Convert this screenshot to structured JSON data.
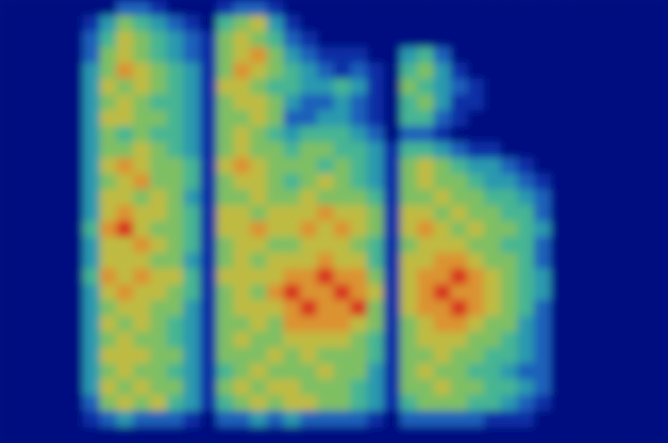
{
  "chart_data": {
    "type": "heatmap",
    "tick_labels": false,
    "cells": [
      [
        0,
        0,
        0,
        0,
        0,
        0,
        0,
        2,
        2,
        1,
        0,
        0,
        0,
        1,
        2,
        2,
        1,
        0,
        0,
        0,
        0,
        0,
        0,
        0,
        0,
        0,
        0,
        0,
        0,
        0,
        0,
        0,
        0,
        0,
        0,
        0,
        0,
        0,
        0,
        0
      ],
      [
        0,
        0,
        0,
        0,
        0,
        1,
        3,
        5,
        4,
        3,
        2,
        1,
        0,
        4,
        5,
        6,
        3,
        1,
        0,
        0,
        0,
        0,
        0,
        0,
        0,
        0,
        0,
        0,
        0,
        0,
        0,
        0,
        0,
        0,
        0,
        0,
        0,
        0,
        0,
        0
      ],
      [
        0,
        0,
        0,
        0,
        0,
        2,
        4,
        6,
        5,
        4,
        3,
        2,
        1,
        5,
        6,
        5,
        4,
        2,
        1,
        0,
        0,
        0,
        0,
        0,
        0,
        0,
        0,
        0,
        0,
        0,
        0,
        0,
        0,
        0,
        0,
        0,
        0,
        0,
        0,
        0
      ],
      [
        0,
        0,
        0,
        0,
        0,
        2,
        5,
        6,
        5,
        4,
        3,
        2,
        1,
        5,
        6,
        7,
        5,
        3,
        2,
        1,
        1,
        1,
        0,
        0,
        3,
        4,
        2,
        0,
        0,
        0,
        0,
        0,
        0,
        0,
        0,
        0,
        0,
        0,
        0,
        0
      ],
      [
        0,
        0,
        0,
        0,
        0,
        3,
        5,
        7,
        6,
        5,
        4,
        3,
        1,
        5,
        7,
        6,
        5,
        4,
        3,
        2,
        1,
        2,
        1,
        0,
        4,
        5,
        3,
        1,
        0,
        0,
        0,
        0,
        0,
        0,
        0,
        0,
        0,
        0,
        0,
        0
      ],
      [
        0,
        0,
        0,
        0,
        0,
        3,
        6,
        5,
        6,
        5,
        4,
        3,
        1,
        6,
        6,
        5,
        4,
        4,
        3,
        3,
        4,
        3,
        1,
        0,
        5,
        4,
        3,
        2,
        1,
        0,
        0,
        0,
        0,
        0,
        0,
        0,
        0,
        0,
        0,
        0
      ],
      [
        0,
        0,
        0,
        0,
        0,
        3,
        5,
        6,
        5,
        4,
        4,
        3,
        1,
        5,
        6,
        6,
        5,
        3,
        2,
        2,
        3,
        2,
        1,
        0,
        4,
        5,
        3,
        1,
        1,
        0,
        0,
        0,
        0,
        0,
        0,
        0,
        0,
        0,
        0,
        0
      ],
      [
        0,
        0,
        0,
        0,
        0,
        3,
        6,
        6,
        5,
        5,
        4,
        3,
        1,
        5,
        5,
        6,
        5,
        2,
        2,
        3,
        3,
        2,
        1,
        0,
        4,
        4,
        2,
        1,
        0,
        0,
        0,
        0,
        0,
        0,
        0,
        0,
        0,
        0,
        0,
        0
      ],
      [
        0,
        0,
        0,
        0,
        0,
        3,
        5,
        4,
        5,
        4,
        4,
        3,
        1,
        5,
        6,
        5,
        4,
        3,
        4,
        4,
        4,
        3,
        2,
        0,
        2,
        2,
        1,
        0,
        0,
        0,
        0,
        0,
        0,
        0,
        0,
        0,
        0,
        0,
        0,
        0
      ],
      [
        0,
        0,
        0,
        0,
        0,
        3,
        5,
        5,
        6,
        5,
        4,
        3,
        1,
        5,
        6,
        5,
        5,
        4,
        5,
        5,
        4,
        4,
        3,
        1,
        4,
        4,
        3,
        2,
        1,
        1,
        0,
        0,
        0,
        0,
        0,
        0,
        0,
        0,
        0,
        0
      ],
      [
        0,
        0,
        0,
        0,
        0,
        3,
        6,
        7,
        6,
        5,
        5,
        4,
        1,
        6,
        7,
        6,
        5,
        5,
        5,
        4,
        5,
        4,
        3,
        1,
        5,
        6,
        5,
        4,
        3,
        3,
        2,
        1,
        0,
        0,
        0,
        0,
        0,
        0,
        0,
        0
      ],
      [
        0,
        0,
        0,
        0,
        0,
        3,
        5,
        6,
        7,
        5,
        5,
        4,
        1,
        5,
        6,
        6,
        5,
        4,
        5,
        6,
        5,
        4,
        3,
        1,
        5,
        6,
        5,
        5,
        4,
        3,
        3,
        2,
        1,
        0,
        0,
        0,
        0,
        0,
        0,
        0
      ],
      [
        0,
        0,
        0,
        0,
        0,
        3,
        6,
        6,
        5,
        6,
        5,
        3,
        1,
        5,
        5,
        6,
        5,
        5,
        6,
        5,
        5,
        5,
        4,
        1,
        5,
        5,
        6,
        5,
        5,
        4,
        4,
        3,
        2,
        0,
        0,
        0,
        0,
        0,
        0,
        0
      ],
      [
        0,
        0,
        0,
        0,
        0,
        3,
        6,
        7,
        6,
        6,
        5,
        4,
        1,
        6,
        6,
        5,
        6,
        6,
        6,
        7,
        6,
        6,
        5,
        1,
        6,
        6,
        5,
        6,
        5,
        5,
        4,
        4,
        2,
        0,
        0,
        0,
        0,
        0,
        0,
        0
      ],
      [
        0,
        0,
        0,
        0,
        0,
        4,
        7,
        8,
        6,
        5,
        5,
        4,
        1,
        6,
        6,
        7,
        6,
        6,
        7,
        6,
        7,
        6,
        5,
        1,
        6,
        7,
        6,
        5,
        6,
        5,
        5,
        4,
        3,
        0,
        0,
        0,
        0,
        0,
        0,
        0
      ],
      [
        0,
        0,
        0,
        0,
        0,
        3,
        6,
        6,
        7,
        6,
        5,
        4,
        1,
        5,
        6,
        6,
        5,
        5,
        6,
        6,
        6,
        5,
        4,
        1,
        5,
        6,
        6,
        6,
        5,
        5,
        4,
        4,
        2,
        0,
        0,
        0,
        0,
        0,
        0,
        0
      ],
      [
        0,
        0,
        0,
        0,
        0,
        3,
        6,
        6,
        6,
        5,
        5,
        3,
        1,
        5,
        6,
        5,
        6,
        6,
        6,
        7,
        6,
        6,
        4,
        1,
        6,
        6,
        7,
        7,
        6,
        5,
        5,
        4,
        2,
        0,
        0,
        0,
        0,
        0,
        0,
        0
      ],
      [
        0,
        0,
        0,
        0,
        0,
        4,
        7,
        6,
        7,
        6,
        6,
        4,
        1,
        6,
        6,
        6,
        6,
        7,
        7,
        8,
        7,
        7,
        5,
        1,
        6,
        7,
        7,
        8,
        7,
        6,
        5,
        4,
        3,
        0,
        0,
        0,
        0,
        0,
        0,
        0
      ],
      [
        0,
        0,
        0,
        0,
        0,
        3,
        6,
        7,
        6,
        6,
        5,
        4,
        1,
        5,
        6,
        5,
        7,
        8,
        7,
        7,
        8,
        7,
        6,
        1,
        6,
        7,
        8,
        7,
        7,
        6,
        5,
        4,
        3,
        0,
        0,
        0,
        0,
        0,
        0,
        0
      ],
      [
        0,
        0,
        0,
        0,
        0,
        3,
        5,
        6,
        6,
        5,
        5,
        3,
        1,
        5,
        6,
        6,
        6,
        7,
        8,
        7,
        7,
        8,
        5,
        1,
        6,
        7,
        7,
        8,
        7,
        6,
        5,
        4,
        2,
        0,
        0,
        0,
        0,
        0,
        0,
        0
      ],
      [
        0,
        0,
        0,
        0,
        0,
        3,
        6,
        5,
        6,
        5,
        4,
        3,
        1,
        5,
        5,
        6,
        5,
        7,
        7,
        7,
        7,
        6,
        5,
        1,
        5,
        6,
        7,
        7,
        6,
        5,
        5,
        3,
        2,
        0,
        0,
        0,
        0,
        0,
        0,
        0
      ],
      [
        0,
        0,
        0,
        0,
        0,
        3,
        5,
        6,
        5,
        5,
        4,
        3,
        1,
        5,
        6,
        5,
        5,
        6,
        6,
        6,
        6,
        5,
        4,
        1,
        5,
        6,
        6,
        6,
        5,
        5,
        4,
        3,
        2,
        0,
        0,
        0,
        0,
        0,
        0,
        0
      ],
      [
        0,
        0,
        0,
        0,
        0,
        3,
        6,
        6,
        6,
        5,
        5,
        3,
        1,
        5,
        5,
        5,
        6,
        5,
        6,
        5,
        5,
        5,
        4,
        1,
        5,
        5,
        6,
        5,
        5,
        4,
        4,
        3,
        2,
        0,
        0,
        0,
        0,
        0,
        0,
        0
      ],
      [
        0,
        0,
        0,
        0,
        0,
        3,
        5,
        6,
        5,
        5,
        4,
        3,
        1,
        4,
        5,
        6,
        5,
        5,
        5,
        6,
        5,
        5,
        3,
        1,
        5,
        6,
        5,
        5,
        4,
        4,
        3,
        2,
        2,
        0,
        0,
        0,
        0,
        0,
        0,
        0
      ],
      [
        0,
        0,
        0,
        0,
        0,
        3,
        6,
        5,
        6,
        5,
        5,
        3,
        1,
        5,
        6,
        5,
        6,
        6,
        5,
        5,
        5,
        4,
        3,
        1,
        5,
        5,
        6,
        5,
        5,
        4,
        4,
        3,
        2,
        0,
        0,
        0,
        0,
        0,
        0,
        0
      ],
      [
        0,
        0,
        0,
        0,
        0,
        2,
        5,
        6,
        5,
        6,
        4,
        3,
        1,
        4,
        5,
        6,
        5,
        6,
        6,
        5,
        5,
        4,
        3,
        1,
        4,
        5,
        5,
        5,
        4,
        4,
        3,
        2,
        1,
        0,
        0,
        0,
        0,
        0,
        0,
        0
      ],
      [
        0,
        0,
        0,
        0,
        0,
        1,
        2,
        3,
        2,
        2,
        2,
        1,
        0,
        2,
        2,
        3,
        2,
        3,
        2,
        2,
        2,
        2,
        1,
        0,
        2,
        2,
        2,
        2,
        2,
        1,
        1,
        1,
        0,
        0,
        0,
        0,
        0,
        0,
        0,
        0
      ],
      [
        0,
        0,
        0,
        0,
        0,
        0,
        0,
        0,
        0,
        0,
        0,
        0,
        0,
        0,
        0,
        0,
        0,
        0,
        0,
        0,
        0,
        0,
        0,
        0,
        0,
        0,
        0,
        0,
        0,
        0,
        0,
        0,
        0,
        0,
        0,
        0,
        0,
        0,
        0,
        0
      ]
    ]
  }
}
